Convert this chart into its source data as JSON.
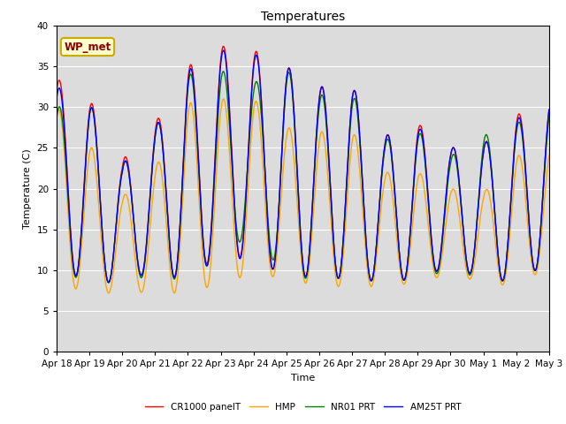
{
  "title": "Temperatures",
  "xlabel": "Time",
  "ylabel": "Temperature (C)",
  "ylim": [
    0,
    40
  ],
  "yticks": [
    0,
    5,
    10,
    15,
    20,
    25,
    30,
    35,
    40
  ],
  "annotation_text": "WP_met",
  "legend_labels": [
    "CR1000 panelT",
    "HMP",
    "NR01 PRT",
    "AM25T PRT"
  ],
  "line_colors": [
    "red",
    "orange",
    "green",
    "blue"
  ],
  "bg_color": "#dcdcdc",
  "fig_bg": "#ffffff",
  "days": [
    "Apr 18",
    "Apr 19",
    "Apr 20",
    "Apr 21",
    "Apr 22",
    "Apr 23",
    "Apr 24",
    "Apr 25",
    "Apr 26",
    "Apr 27",
    "Apr 28",
    "Apr 29",
    "Apr 30",
    "May 1",
    "May 2",
    "May 3"
  ],
  "cr_maxes": [
    33.5,
    31.0,
    23.5,
    28.0,
    35.0,
    37.5,
    37.0,
    35.0,
    32.5,
    32.5,
    26.5,
    28.0,
    25.0,
    25.5,
    29.0,
    31.0
  ],
  "cr_mins": [
    10.5,
    8.5,
    8.5,
    10.0,
    8.5,
    12.5,
    11.0,
    9.5,
    9.0,
    9.0,
    8.5,
    9.0,
    10.5,
    9.0,
    8.5,
    11.0
  ],
  "hmp_maxes": [
    30.0,
    25.5,
    19.0,
    22.5,
    30.5,
    31.0,
    31.0,
    27.5,
    27.0,
    27.0,
    22.0,
    22.0,
    20.0,
    19.5,
    24.0,
    25.0
  ],
  "hmp_mins": [
    8.0,
    7.5,
    7.0,
    7.5,
    7.0,
    8.5,
    9.5,
    9.0,
    8.0,
    8.0,
    8.0,
    8.5,
    9.5,
    8.5,
    8.0,
    10.5
  ],
  "nr_maxes": [
    30.0,
    30.5,
    23.0,
    27.5,
    34.0,
    34.5,
    33.0,
    34.5,
    31.5,
    31.5,
    26.0,
    27.0,
    24.0,
    26.5,
    28.0,
    30.0
  ],
  "nr_mins": [
    10.0,
    8.5,
    8.5,
    9.5,
    8.5,
    12.0,
    14.5,
    9.0,
    9.0,
    9.0,
    8.5,
    9.0,
    10.0,
    9.0,
    8.5,
    11.0
  ],
  "am_maxes": [
    32.5,
    30.5,
    23.0,
    27.5,
    34.5,
    37.0,
    36.5,
    35.0,
    32.5,
    32.5,
    26.5,
    27.5,
    25.0,
    25.5,
    28.5,
    31.0
  ],
  "am_mins": [
    10.5,
    8.5,
    8.5,
    10.0,
    8.5,
    12.0,
    11.0,
    9.5,
    9.0,
    9.0,
    8.5,
    9.0,
    10.5,
    9.0,
    8.5,
    11.0
  ]
}
